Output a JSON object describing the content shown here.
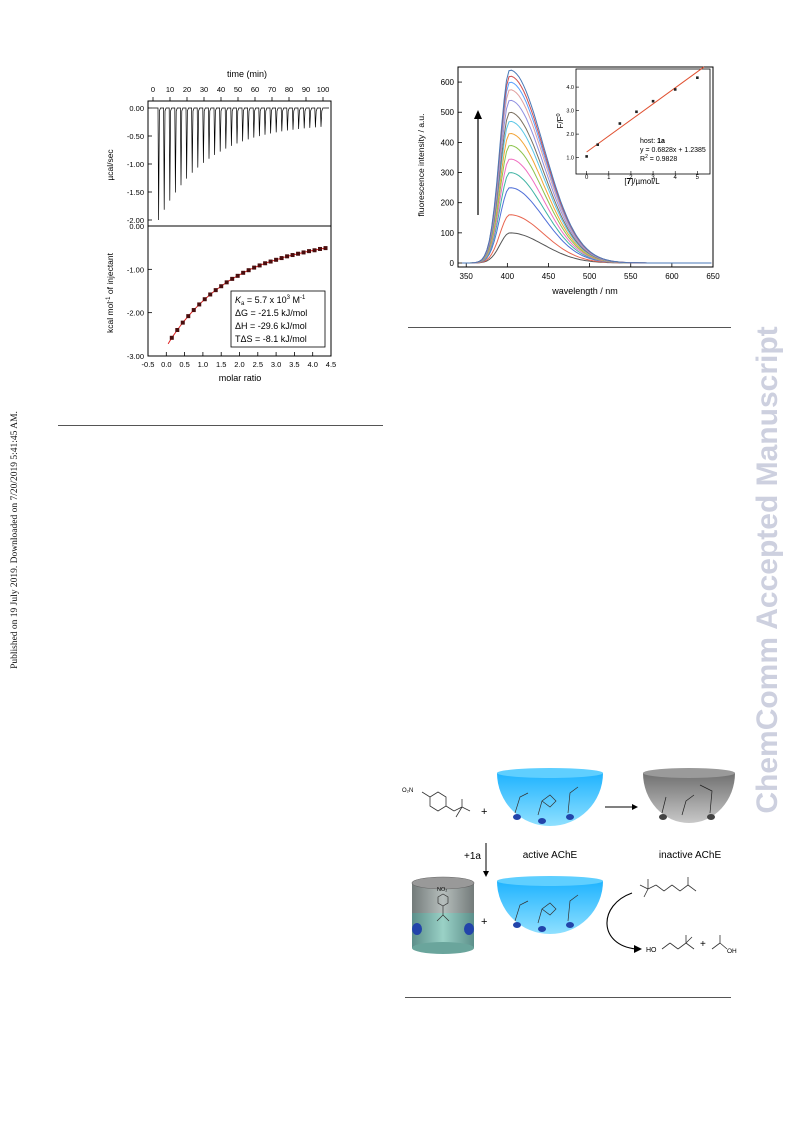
{
  "margins": {
    "left_note": "Published on 19 July 2019. Downloaded on 7/20/2019 5:41:45 AM.",
    "right_watermark": "ChemComm Accepted Manuscript"
  },
  "figure_itc": {
    "top_axis_label": "time (min)",
    "top_ticks": [
      "0",
      "10",
      "20",
      "30",
      "40",
      "50",
      "60",
      "70",
      "80",
      "90",
      "100"
    ],
    "upper_ylabel": "µcal/sec",
    "upper_yticks": [
      "0.00",
      "-0.50",
      "-1.00",
      "-1.50",
      "-2.00"
    ],
    "lower_ylabel_main": "kcal mol",
    "lower_ylabel_sup": "-1",
    "lower_ylabel_rest": " of injectant",
    "lower_yticks": [
      "0.00",
      "-1.00",
      "-2.00",
      "-3.00"
    ],
    "xlabel": "molar ratio",
    "xticks": [
      "-0.5",
      "0.0",
      "0.5",
      "1.0",
      "1.5",
      "2.0",
      "2.5",
      "3.0",
      "3.5",
      "4.0",
      "4.5"
    ],
    "box": {
      "ka_sym": "K",
      "ka_sub": "a",
      "ka_val": " = 5.7 x 10",
      "ka_exp": "3",
      "ka_unit": " M",
      "ka_unit_exp": "-1",
      "dg": "ΔG = -21.5 kJ/mol",
      "dh": "ΔH = -29.6 kJ/mol",
      "tds": "TΔS = -8.1 kJ/mol"
    }
  },
  "figure_fluor": {
    "ylabel": "fluorescence intensity / a.u.",
    "xlabel": "wavelength / nm",
    "yticks": [
      "0",
      "100",
      "200",
      "300",
      "400",
      "500",
      "600"
    ],
    "xticks": [
      "350",
      "400",
      "450",
      "500",
      "550",
      "600",
      "650"
    ],
    "inset": {
      "ylabel_main": "F/F",
      "ylabel_sup": "0",
      "xlabel_bracket_open": "[",
      "xlabel_bold": "7",
      "xlabel_rest": "]/µmol/L",
      "xticks": [
        "0",
        "1",
        "2",
        "3",
        "4",
        "5"
      ],
      "yticks": [
        "1.0",
        "2.0",
        "3.0",
        "4.0"
      ],
      "host_prefix": "host: ",
      "host_bold": "1a",
      "equation": "y = 0.6828x + 1.2385",
      "r2_main": "R",
      "r2_sup": "2",
      "r2_rest": " = 0.9828"
    },
    "spectra_peaks": [
      100,
      160,
      250,
      300,
      345,
      390,
      430,
      470,
      500,
      540,
      575,
      600,
      620,
      640
    ],
    "spectra_colors": [
      "#555555",
      "#e8654f",
      "#4f6fd8",
      "#3eb3a3",
      "#f06ec0",
      "#8bc34a",
      "#f2a436",
      "#5bc7e6",
      "#7a6f60",
      "#8f8fe0",
      "#e0a0a0",
      "#5aa0ff",
      "#d05050",
      "#4a7ab8"
    ]
  },
  "chart_data": [
    {
      "type": "scatter",
      "title": "",
      "xlabel": "molar ratio",
      "ylabel": "kcal mol-1 of injectant",
      "xlim": [
        -0.5,
        4.5
      ],
      "ylim": [
        -3.0,
        0.0
      ],
      "x": [
        0.15,
        0.3,
        0.45,
        0.6,
        0.75,
        0.9,
        1.05,
        1.2,
        1.35,
        1.5,
        1.65,
        1.8,
        1.95,
        2.1,
        2.25,
        2.4,
        2.55,
        2.7,
        2.85,
        3.0,
        3.15,
        3.3,
        3.45,
        3.6,
        3.75,
        3.9,
        4.05,
        4.2,
        4.35
      ],
      "y": [
        -2.58,
        -2.4,
        -2.23,
        -2.08,
        -1.94,
        -1.81,
        -1.69,
        -1.58,
        -1.48,
        -1.39,
        -1.3,
        -1.22,
        -1.15,
        -1.08,
        -1.02,
        -0.96,
        -0.91,
        -0.86,
        -0.82,
        -0.78,
        -0.74,
        -0.7,
        -0.67,
        -0.64,
        -0.61,
        -0.58,
        -0.56,
        -0.53,
        -0.51
      ]
    },
    {
      "type": "scatter",
      "title": "",
      "xlabel": "[7]/µmol/L",
      "ylabel": "F/F0",
      "xlim": [
        0,
        5
      ],
      "ylim": [
        0.6,
        4.6
      ],
      "x": [
        0,
        0.5,
        1.5,
        2.25,
        3,
        4,
        5
      ],
      "y": [
        1.05,
        1.55,
        2.45,
        2.95,
        3.4,
        3.9,
        4.4
      ],
      "fit": {
        "slope": 0.6828,
        "intercept": 1.2385
      }
    }
  ],
  "scheme": {
    "active_label": "active AChE",
    "inactive_label": "inactive AChE",
    "reagent_label": "+1a",
    "plus1": "+",
    "plus2": "+",
    "plus3": "+",
    "no2_small": "O₂N",
    "no2_guest": "NO₂",
    "ho_left": "HO",
    "oh_right": "OH"
  }
}
